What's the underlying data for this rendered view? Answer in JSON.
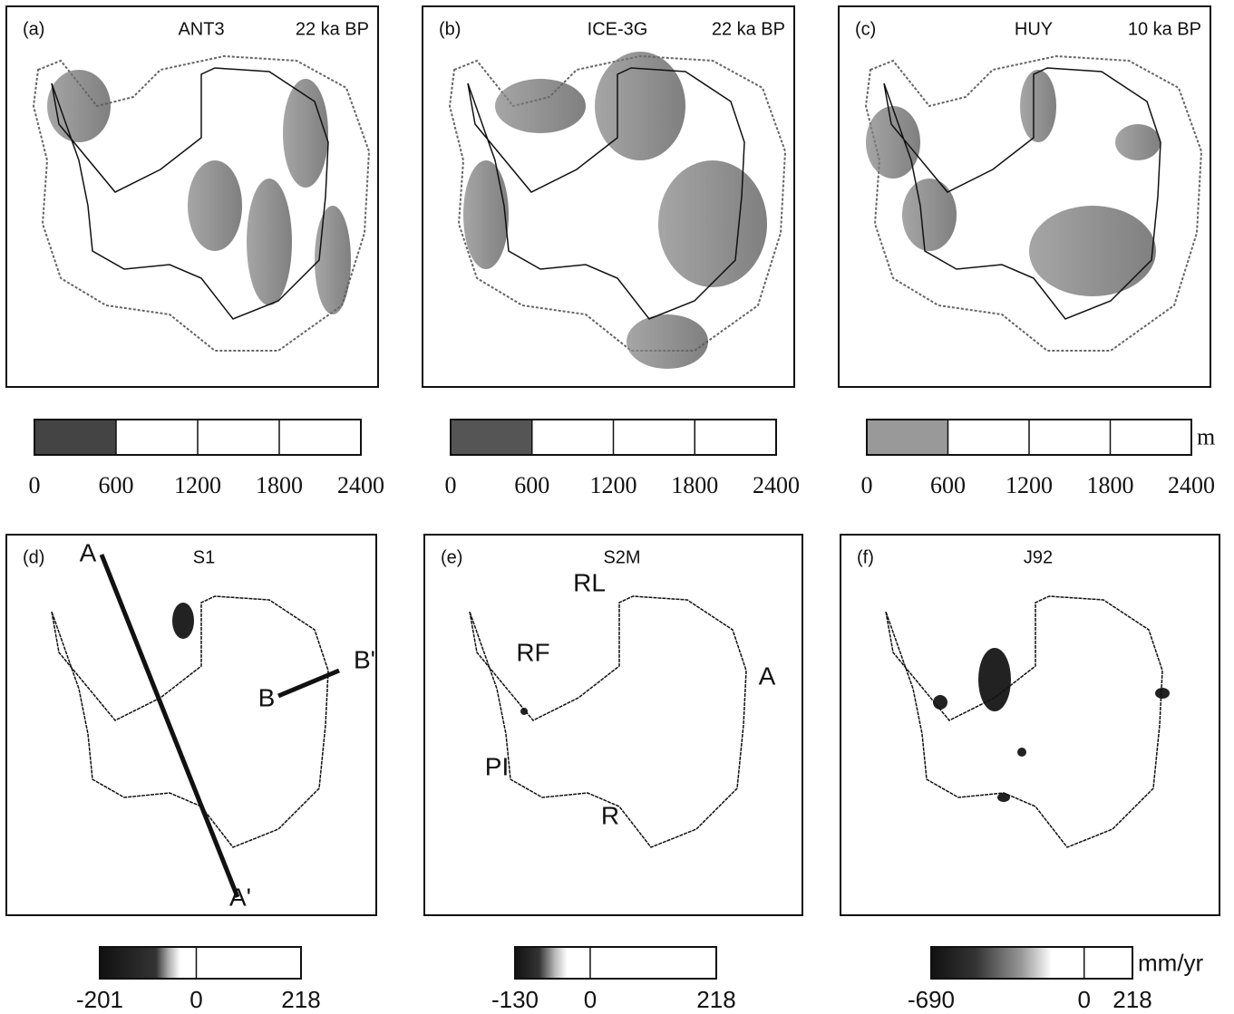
{
  "panels": [
    {
      "label": "(a)",
      "title": "ANT3",
      "subtitle": "22 ka BP",
      "colorbar": {
        "lim": [
          0,
          2400
        ],
        "ticks": [
          0,
          600,
          1200,
          1800,
          2400
        ]
      }
    },
    {
      "label": "(b)",
      "title": "ICE-3G",
      "subtitle": "22 ka BP",
      "colorbar": {
        "lim": [
          0,
          2400
        ],
        "ticks": [
          0,
          600,
          1200,
          1800,
          2400
        ]
      }
    },
    {
      "label": "(c)",
      "title": "HUY",
      "subtitle": "10 ka BP",
      "colorbar": {
        "lim": [
          0,
          2400
        ],
        "ticks": [
          0,
          600,
          1200,
          1800,
          2400
        ],
        "unit": "m"
      }
    },
    {
      "label": "(d)",
      "title": "S1",
      "annotations": [
        "A",
        "A'",
        "B",
        "B'"
      ],
      "colorbar": {
        "lim": [
          -201,
          218
        ],
        "ticks": [
          -201,
          0,
          218
        ]
      }
    },
    {
      "label": "(e)",
      "title": "S2M",
      "annotations": [
        "RL",
        "RF",
        "A",
        "PI",
        "R"
      ],
      "colorbar": {
        "lim": [
          -130,
          218
        ],
        "ticks": [
          -130,
          0,
          218
        ]
      }
    },
    {
      "label": "(f)",
      "title": "J92",
      "colorbar": {
        "lim": [
          -690,
          218
        ],
        "ticks": [
          -690,
          0,
          218
        ],
        "unit": "mm/yr"
      }
    }
  ]
}
